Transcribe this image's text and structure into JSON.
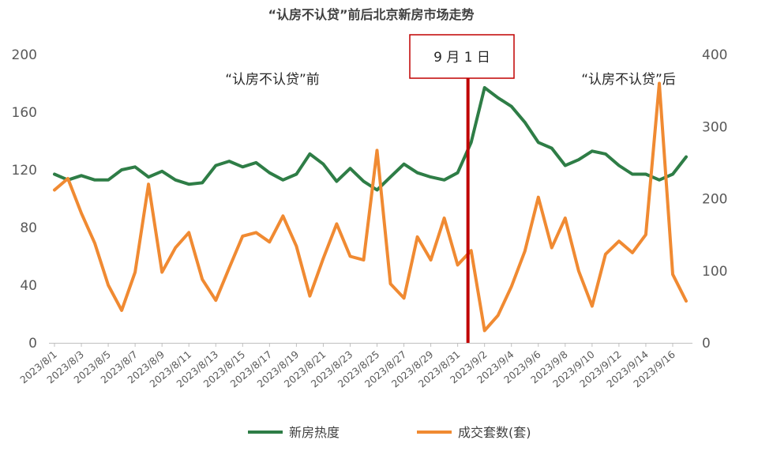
{
  "chart_data": {
    "type": "line",
    "title": "“认房不认贷”前后北京新房市场走势",
    "x": [
      "2023/8/1",
      "2023/8/2",
      "2023/8/3",
      "2023/8/4",
      "2023/8/5",
      "2023/8/6",
      "2023/8/7",
      "2023/8/8",
      "2023/8/9",
      "2023/8/10",
      "2023/8/11",
      "2023/8/12",
      "2023/8/13",
      "2023/8/14",
      "2023/8/15",
      "2023/8/16",
      "2023/8/17",
      "2023/8/18",
      "2023/8/19",
      "2023/8/20",
      "2023/8/21",
      "2023/8/22",
      "2023/8/23",
      "2023/8/24",
      "2023/8/25",
      "2023/8/26",
      "2023/8/27",
      "2023/8/28",
      "2023/8/29",
      "2023/8/30",
      "2023/8/31",
      "2023/9/1",
      "2023/9/2",
      "2023/9/3",
      "2023/9/4",
      "2023/9/5",
      "2023/9/6",
      "2023/9/7",
      "2023/9/8",
      "2023/9/9",
      "2023/9/10",
      "2023/9/11",
      "2023/9/12",
      "2023/9/13",
      "2023/9/14",
      "2023/9/15",
      "2023/9/16",
      "2023/9/17"
    ],
    "x_tick_labels": [
      "2023/8/1",
      "2023/8/3",
      "2023/8/5",
      "2023/8/7",
      "2023/8/9",
      "2023/8/11",
      "2023/8/13",
      "2023/8/15",
      "2023/8/17",
      "2023/8/19",
      "2023/8/21",
      "2023/8/23",
      "2023/8/25",
      "2023/8/27",
      "2023/8/29",
      "2023/8/31",
      "2023/9/2",
      "2023/9/4",
      "2023/9/6",
      "2023/9/8",
      "2023/9/10",
      "2023/9/12",
      "2023/9/14",
      "2023/9/16"
    ],
    "y_left": {
      "ylim": [
        0,
        200
      ],
      "ticks": [
        "0",
        "40",
        "80",
        "120",
        "160",
        "200"
      ]
    },
    "y_right": {
      "ylim": [
        0,
        400
      ],
      "ticks": [
        "0",
        "100",
        "200",
        "300",
        "400"
      ]
    },
    "series": [
      {
        "name": "新房热度",
        "axis": "left",
        "color": "#2e7d46",
        "values": [
          117,
          113,
          116,
          113,
          113,
          120,
          122,
          115,
          119,
          113,
          110,
          111,
          123,
          126,
          122,
          125,
          118,
          113,
          117,
          131,
          124,
          112,
          121,
          112,
          106,
          115,
          124,
          118,
          115,
          113,
          118,
          139,
          177,
          170,
          164,
          153,
          139,
          135,
          123,
          127,
          133,
          131,
          123,
          117,
          117,
          113,
          117,
          129
        ]
      },
      {
        "name": "成交套数(套)",
        "axis": "right",
        "color": "#f08a32",
        "values": [
          212,
          228,
          180,
          138,
          80,
          45,
          98,
          220,
          98,
          132,
          153,
          88,
          59,
          104,
          148,
          153,
          140,
          176,
          134,
          65,
          117,
          165,
          120,
          115,
          267,
          82,
          62,
          147,
          115,
          173,
          108,
          128,
          17,
          38,
          78,
          127,
          202,
          132,
          173,
          100,
          51,
          123,
          141,
          125,
          150,
          360,
          95,
          58
        ]
      }
    ],
    "annotations": {
      "marker_label": "9 月 1 日",
      "marker_x": "2023/9/1",
      "marker_color": "#c00000",
      "before_label": "“认房不认贷”前",
      "after_label": "“认房不认贷”后"
    },
    "legend": {
      "placement": "bottom-center"
    }
  }
}
